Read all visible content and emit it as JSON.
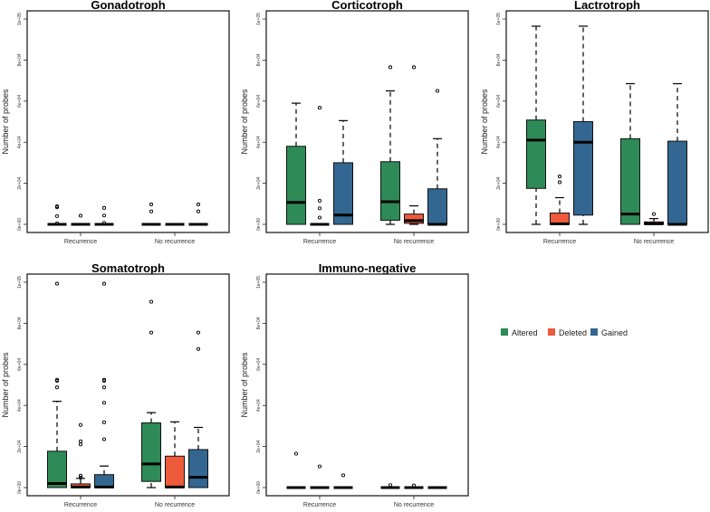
{
  "chart_data": {
    "type": "boxplot",
    "ylabel": "Number of probes",
    "ylim": [
      0,
      100000
    ],
    "yticks": [
      0,
      20000,
      40000,
      60000,
      80000,
      100000
    ],
    "ytick_labels": [
      "0e+00",
      "2e+04",
      "4e+04",
      "6e+04",
      "8e+04",
      "1e+05"
    ],
    "categories": [
      "Recurrence",
      "No recurrence"
    ],
    "legend": {
      "placement": "right",
      "entries": [
        {
          "name": "Altered",
          "color": "#2e8b57"
        },
        {
          "name": "Deleted",
          "color": "#ee5a3c"
        },
        {
          "name": "Gained",
          "color": "#336791"
        }
      ]
    },
    "panels": [
      {
        "title": "Gonadotroph",
        "groups": [
          [
            {
              "stats": [
                0,
                0,
                0,
                0,
                0
              ],
              "outliers": [
                8800,
                8300,
                4000,
                500
              ]
            },
            {
              "stats": [
                0,
                0,
                0,
                0,
                0
              ],
              "outliers": [
                4200
              ]
            },
            {
              "stats": [
                0,
                0,
                0,
                0,
                0
              ],
              "outliers": [
                8000,
                4300,
                700
              ]
            }
          ],
          [
            {
              "stats": [
                0,
                0,
                0,
                0,
                0
              ],
              "outliers": [
                9700,
                6300
              ]
            },
            {
              "stats": [
                0,
                0,
                0,
                0,
                0
              ],
              "outliers": []
            },
            {
              "stats": [
                0,
                0,
                0,
                0,
                0
              ],
              "outliers": [
                9700,
                6300
              ]
            }
          ]
        ]
      },
      {
        "title": "Corticotroph",
        "groups": [
          [
            {
              "stats": [
                0,
                0,
                10700,
                38000,
                59000
              ],
              "outliers": []
            },
            {
              "stats": [
                0,
                0,
                0,
                0,
                0
              ],
              "outliers": [
                56800,
                11500,
                7800,
                3300
              ]
            },
            {
              "stats": [
                0,
                0,
                4500,
                30000,
                50500
              ],
              "outliers": []
            }
          ],
          [
            {
              "stats": [
                0,
                2000,
                11000,
                30500,
                65000
              ],
              "outliers": [
                76500
              ]
            },
            {
              "stats": [
                0,
                500,
                1800,
                5000,
                9000
              ],
              "outliers": [
                76500
              ]
            },
            {
              "stats": [
                0,
                0,
                0,
                17300,
                41700
              ],
              "outliers": [
                65000
              ]
            }
          ]
        ]
      },
      {
        "title": "Lactrotroph",
        "groups": [
          [
            {
              "stats": [
                0,
                17500,
                41000,
                50800,
                96500
              ],
              "outliers": []
            },
            {
              "stats": [
                0,
                0,
                200,
                5500,
                13000
              ],
              "outliers": [
                23300,
                20500
              ]
            },
            {
              "stats": [
                0,
                4500,
                40000,
                50000,
                96500
              ],
              "outliers": []
            }
          ],
          [
            {
              "stats": [
                0,
                0,
                5000,
                41700,
                68500
              ],
              "outliers": []
            },
            {
              "stats": [
                0,
                0,
                300,
                1200,
                2800
              ],
              "outliers": [
                5000
              ]
            },
            {
              "stats": [
                0,
                0,
                0,
                40500,
                68500
              ],
              "outliers": []
            }
          ]
        ]
      },
      {
        "title": "Somatotroph",
        "groups": [
          [
            {
              "stats": [
                0,
                0,
                2000,
                17700,
                42000
              ],
              "outliers": [
                99300,
                52500,
                52000,
                48800
              ]
            },
            {
              "stats": [
                0,
                0,
                300,
                1800,
                4500
              ],
              "outliers": [
                30500,
                22500,
                21000,
                5800,
                4800
              ]
            },
            {
              "stats": [
                0,
                0,
                300,
                6300,
                10500
              ],
              "outliers": [
                99300,
                52500,
                52000,
                48800,
                41300,
                31800,
                23500
              ]
            }
          ],
          [
            {
              "stats": [
                0,
                3000,
                11500,
                31500,
                36500
              ],
              "outliers": [
                90500,
                75500
              ]
            },
            {
              "stats": [
                0,
                0,
                300,
                15300,
                32000
              ],
              "outliers": []
            },
            {
              "stats": [
                0,
                0,
                5000,
                18500,
                29300
              ],
              "outliers": [
                75500,
                67500
              ]
            }
          ]
        ]
      },
      {
        "title": "Immuno-negative",
        "groups": [
          [
            {
              "stats": [
                0,
                0,
                0,
                0,
                0
              ],
              "outliers": [
                16500
              ]
            },
            {
              "stats": [
                0,
                0,
                0,
                0,
                0
              ],
              "outliers": [
                10300
              ]
            },
            {
              "stats": [
                0,
                0,
                0,
                0,
                0
              ],
              "outliers": [
                6000
              ]
            }
          ],
          [
            {
              "stats": [
                0,
                0,
                0,
                0,
                0
              ],
              "outliers": [
                1200
              ]
            },
            {
              "stats": [
                0,
                0,
                0,
                0,
                0
              ],
              "outliers": [
                1000
              ]
            },
            {
              "stats": [
                0,
                0,
                0,
                0,
                0
              ],
              "outliers": []
            }
          ]
        ]
      }
    ]
  }
}
